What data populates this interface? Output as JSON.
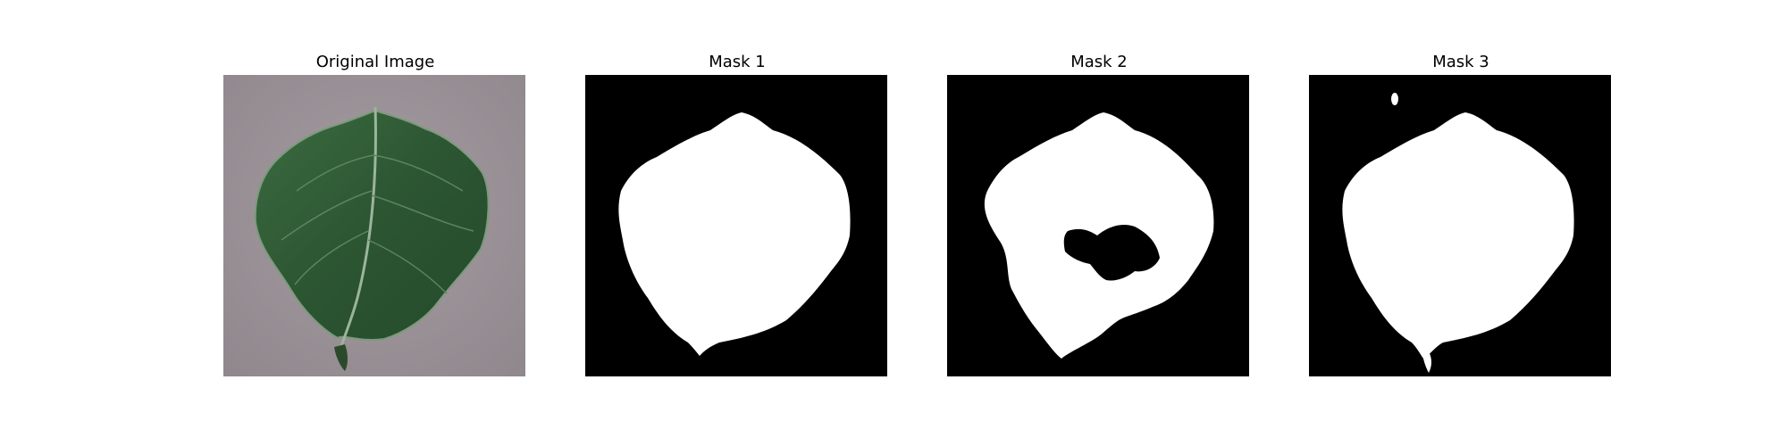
{
  "panels": [
    {
      "title": "Original Image"
    },
    {
      "title": "Mask 1"
    },
    {
      "title": "Mask 2"
    },
    {
      "title": "Mask 3"
    }
  ],
  "colors": {
    "background": "#ffffff",
    "mask_bg": "#000000",
    "mask_fg": "#ffffff",
    "photo_bg": "#9c9499",
    "leaf": "#2f5a34"
  }
}
